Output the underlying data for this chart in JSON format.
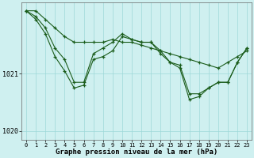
{
  "title": "Graphe pression niveau de la mer (hPa)",
  "x": [
    0,
    1,
    2,
    3,
    4,
    5,
    6,
    7,
    8,
    9,
    10,
    11,
    12,
    13,
    14,
    15,
    16,
    17,
    18,
    19,
    20,
    21,
    22,
    23
  ],
  "top_line": [
    1022.1,
    1022.1,
    1021.95,
    1021.8,
    1021.65,
    1021.55,
    1021.55,
    1021.55,
    1021.55,
    1021.6,
    1021.55,
    1021.55,
    1021.5,
    1021.45,
    1021.4,
    1021.35,
    1021.3,
    1021.25,
    1021.2,
    1021.15,
    1021.1,
    1021.2,
    1021.3,
    1021.4
  ],
  "jagged1": [
    1022.1,
    1022.0,
    1021.8,
    1021.45,
    1021.25,
    1020.85,
    1020.85,
    1021.35,
    1021.45,
    1021.55,
    1021.7,
    1021.6,
    1021.55,
    1021.55,
    1021.35,
    1021.2,
    1021.15,
    1020.65,
    1020.65,
    1020.75,
    1020.85,
    1020.85,
    1021.2,
    1021.45
  ],
  "jagged2": [
    1022.1,
    1021.95,
    1021.7,
    1021.3,
    1021.05,
    1020.75,
    1020.8,
    1021.25,
    1021.3,
    1021.4,
    1021.65,
    1021.6,
    1021.55,
    1021.55,
    1021.4,
    1021.2,
    1021.1,
    1020.55,
    1020.6,
    1020.75,
    1020.85,
    1020.85,
    1021.2,
    1021.45
  ],
  "background_color": "#cff0f0",
  "line_color": "#1a5c1a",
  "grid_color": "#9dd8d8",
  "ylim": [
    1019.85,
    1022.25
  ],
  "yticks": [
    1020,
    1021
  ],
  "xlim": [
    -0.5,
    23.5
  ]
}
